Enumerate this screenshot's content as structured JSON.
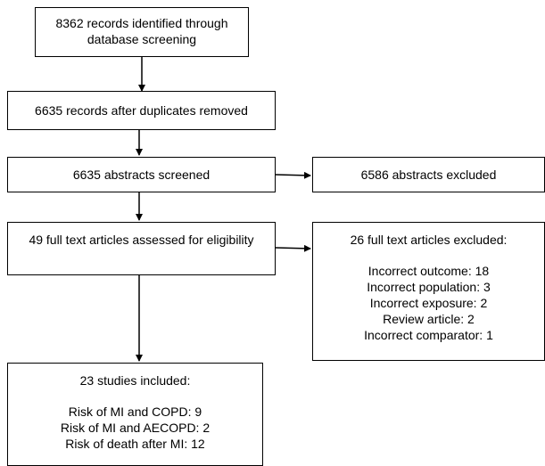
{
  "identification": {
    "line1": "8362 records identified through",
    "line2": "database screening"
  },
  "duplicates_removed": "6635 records after duplicates removed",
  "screened": "6635 abstracts screened",
  "excluded_abstracts": "6586 abstracts excluded",
  "eligibility": "49 full text articles assessed for eligibility",
  "fulltext_excluded": {
    "title": "26 full text articles excluded:",
    "reasons": [
      "Incorrect outcome: 18",
      "Incorrect population: 3",
      "Incorrect exposure: 2",
      "Review article: 2",
      "Incorrect comparator: 1"
    ]
  },
  "included": {
    "title": "23 studies included:",
    "items": [
      "Risk of MI and COPD: 9",
      "Risk of MI and AECOPD: 2",
      "Risk of death after MI: 12"
    ]
  }
}
